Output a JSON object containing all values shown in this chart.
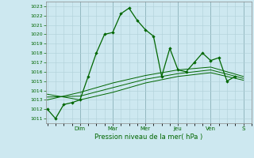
{
  "title": "",
  "xlabel": "Pression niveau de la mer( hPa )",
  "bg_color": "#cde8f0",
  "grid_color": "#b0d0d8",
  "line_color": "#006600",
  "ylim": [
    1010.5,
    1023.5
  ],
  "yticks": [
    1011,
    1012,
    1013,
    1014,
    1015,
    1016,
    1017,
    1018,
    1019,
    1020,
    1021,
    1022,
    1023
  ],
  "x_day_labels": [
    "Dim",
    "Mar",
    "Mer",
    "Jeu",
    "Ven",
    "S"
  ],
  "x_day_positions": [
    2.0,
    4.0,
    6.0,
    8.0,
    10.0,
    12.0
  ],
  "xlim": [
    -0.1,
    12.5
  ],
  "series1_x": [
    0,
    0.5,
    1.0,
    1.5,
    2.0,
    2.5,
    3.0,
    3.5,
    4.0,
    4.5,
    5.0,
    5.5,
    6.0,
    6.5,
    7.0,
    7.5,
    8.0,
    8.5,
    9.0,
    9.5,
    10.0,
    10.5,
    11.0,
    11.5
  ],
  "series1_y": [
    1012.0,
    1011.0,
    1012.5,
    1012.7,
    1013.0,
    1015.5,
    1018.0,
    1020.0,
    1020.2,
    1022.2,
    1022.8,
    1021.5,
    1020.5,
    1019.8,
    1015.5,
    1018.5,
    1016.2,
    1016.0,
    1017.0,
    1018.0,
    1017.2,
    1017.5,
    1015.0,
    1015.5
  ],
  "series2_x": [
    0,
    2.0,
    4.0,
    6.0,
    8.0,
    10.0,
    12.0
  ],
  "series2_y": [
    1013.0,
    1013.8,
    1014.8,
    1015.6,
    1016.2,
    1016.5,
    1015.5
  ],
  "series3_x": [
    0,
    2.0,
    4.0,
    6.0,
    8.0,
    10.0,
    12.0
  ],
  "series3_y": [
    1013.3,
    1013.4,
    1014.3,
    1015.2,
    1015.8,
    1016.2,
    1015.3
  ],
  "series4_x": [
    0,
    2.0,
    4.0,
    6.0,
    8.0,
    10.0,
    12.0
  ],
  "series4_y": [
    1013.6,
    1013.0,
    1013.8,
    1014.8,
    1015.5,
    1015.9,
    1015.1
  ]
}
